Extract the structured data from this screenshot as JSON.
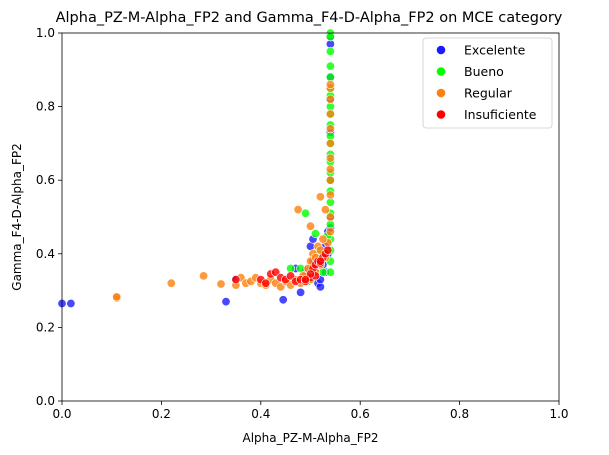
{
  "chart_data": {
    "type": "scatter",
    "title": "Alpha_PZ-M-Alpha_FP2 and Gamma_F4-D-Alpha_FP2 on MCE category",
    "xlabel": "Alpha_PZ-M-Alpha_FP2",
    "ylabel": "Gamma_F4-D-Alpha_FP2",
    "xlim": [
      0,
      1
    ],
    "ylim": [
      0,
      1
    ],
    "xticks": [
      "0.0",
      "0.2",
      "0.4",
      "0.6",
      "0.8",
      "1.0"
    ],
    "yticks": [
      "0.0",
      "0.2",
      "0.4",
      "0.6",
      "0.8",
      "1.0"
    ],
    "grid": false,
    "legend_position": "top-right",
    "series": [
      {
        "name": "Excelente",
        "color": "#1a1aff",
        "points": [
          [
            0.0,
            0.265
          ],
          [
            0.018,
            0.265
          ],
          [
            0.33,
            0.27
          ],
          [
            0.445,
            0.275
          ],
          [
            0.35,
            0.33
          ],
          [
            0.48,
            0.295
          ],
          [
            0.5,
            0.42
          ],
          [
            0.505,
            0.44
          ],
          [
            0.51,
            0.36
          ],
          [
            0.515,
            0.32
          ],
          [
            0.52,
            0.31
          ],
          [
            0.53,
            0.35
          ],
          [
            0.535,
            0.4
          ],
          [
            0.54,
            0.5
          ],
          [
            0.54,
            0.6
          ],
          [
            0.54,
            0.73
          ],
          [
            0.54,
            0.82
          ],
          [
            0.54,
            0.88
          ],
          [
            0.54,
            0.97
          ],
          [
            0.54,
            0.99
          ],
          [
            0.52,
            0.33
          ],
          [
            0.525,
            0.37
          ],
          [
            0.53,
            0.42
          ],
          [
            0.535,
            0.46
          ],
          [
            0.54,
            0.47
          ],
          [
            0.47,
            0.36
          ],
          [
            0.49,
            0.355
          ],
          [
            0.505,
            0.38
          ]
        ]
      },
      {
        "name": "Bueno",
        "color": "#00ff00",
        "points": [
          [
            0.54,
            1.0
          ],
          [
            0.54,
            0.99
          ],
          [
            0.54,
            0.95
          ],
          [
            0.54,
            0.91
          ],
          [
            0.54,
            0.88
          ],
          [
            0.54,
            0.85
          ],
          [
            0.54,
            0.83
          ],
          [
            0.54,
            0.8
          ],
          [
            0.54,
            0.78
          ],
          [
            0.54,
            0.75
          ],
          [
            0.54,
            0.72
          ],
          [
            0.54,
            0.7
          ],
          [
            0.54,
            0.67
          ],
          [
            0.54,
            0.65
          ],
          [
            0.54,
            0.62
          ],
          [
            0.54,
            0.6
          ],
          [
            0.54,
            0.57
          ],
          [
            0.54,
            0.54
          ],
          [
            0.54,
            0.51
          ],
          [
            0.54,
            0.48
          ],
          [
            0.54,
            0.44
          ],
          [
            0.54,
            0.41
          ],
          [
            0.54,
            0.38
          ],
          [
            0.54,
            0.35
          ],
          [
            0.535,
            0.45
          ],
          [
            0.53,
            0.4
          ],
          [
            0.525,
            0.35
          ],
          [
            0.52,
            0.39
          ],
          [
            0.515,
            0.41
          ],
          [
            0.51,
            0.37
          ],
          [
            0.505,
            0.35
          ],
          [
            0.5,
            0.34
          ],
          [
            0.495,
            0.325
          ],
          [
            0.49,
            0.51
          ],
          [
            0.51,
            0.455
          ],
          [
            0.48,
            0.36
          ],
          [
            0.46,
            0.36
          ],
          [
            0.5,
            0.36
          ]
        ]
      },
      {
        "name": "Regular",
        "color": "#ff7f0e",
        "points": [
          [
            0.11,
            0.28
          ],
          [
            0.11,
            0.283
          ],
          [
            0.22,
            0.32
          ],
          [
            0.285,
            0.34
          ],
          [
            0.32,
            0.318
          ],
          [
            0.35,
            0.315
          ],
          [
            0.36,
            0.335
          ],
          [
            0.37,
            0.32
          ],
          [
            0.38,
            0.325
          ],
          [
            0.39,
            0.335
          ],
          [
            0.4,
            0.32
          ],
          [
            0.41,
            0.315
          ],
          [
            0.42,
            0.33
          ],
          [
            0.43,
            0.32
          ],
          [
            0.44,
            0.31
          ],
          [
            0.45,
            0.325
          ],
          [
            0.46,
            0.315
          ],
          [
            0.47,
            0.33
          ],
          [
            0.48,
            0.32
          ],
          [
            0.49,
            0.34
          ],
          [
            0.5,
            0.33
          ],
          [
            0.51,
            0.35
          ],
          [
            0.52,
            0.37
          ],
          [
            0.53,
            0.39
          ],
          [
            0.535,
            0.43
          ],
          [
            0.54,
            0.46
          ],
          [
            0.54,
            0.5
          ],
          [
            0.53,
            0.52
          ],
          [
            0.52,
            0.555
          ],
          [
            0.475,
            0.52
          ],
          [
            0.54,
            0.56
          ],
          [
            0.54,
            0.6
          ],
          [
            0.54,
            0.63
          ],
          [
            0.54,
            0.66
          ],
          [
            0.54,
            0.7
          ],
          [
            0.54,
            0.74
          ],
          [
            0.54,
            0.78
          ],
          [
            0.54,
            0.82
          ],
          [
            0.54,
            0.85
          ],
          [
            0.54,
            0.86
          ],
          [
            0.5,
            0.38
          ],
          [
            0.505,
            0.4
          ],
          [
            0.51,
            0.39
          ],
          [
            0.515,
            0.42
          ],
          [
            0.52,
            0.41
          ],
          [
            0.525,
            0.44
          ],
          [
            0.495,
            0.36
          ],
          [
            0.485,
            0.34
          ],
          [
            0.5,
            0.475
          ]
        ]
      },
      {
        "name": "Insuficiente",
        "color": "#ff0000",
        "points": [
          [
            0.35,
            0.33
          ],
          [
            0.4,
            0.33
          ],
          [
            0.41,
            0.32
          ],
          [
            0.42,
            0.345
          ],
          [
            0.43,
            0.35
          ],
          [
            0.44,
            0.335
          ],
          [
            0.45,
            0.33
          ],
          [
            0.46,
            0.34
          ],
          [
            0.47,
            0.325
          ],
          [
            0.48,
            0.33
          ],
          [
            0.49,
            0.325
          ],
          [
            0.5,
            0.335
          ],
          [
            0.505,
            0.36
          ],
          [
            0.51,
            0.37
          ],
          [
            0.515,
            0.38
          ],
          [
            0.52,
            0.375
          ],
          [
            0.525,
            0.39
          ],
          [
            0.53,
            0.4
          ],
          [
            0.535,
            0.41
          ],
          [
            0.52,
            0.38
          ],
          [
            0.51,
            0.34
          ],
          [
            0.5,
            0.345
          ],
          [
            0.49,
            0.33
          ]
        ]
      }
    ]
  }
}
